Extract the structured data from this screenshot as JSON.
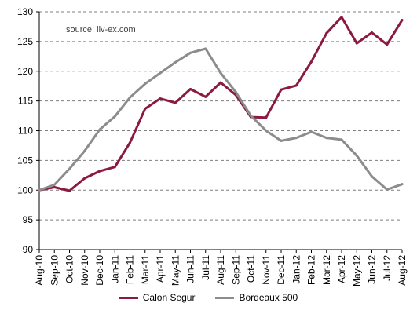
{
  "chart_data": {
    "type": "line",
    "title": "",
    "xlabel": "",
    "ylabel": "",
    "annotation": "source: liv-ex.com",
    "categories": [
      "Aug-10",
      "Sep-10",
      "Oct-10",
      "Nov-10",
      "Dec-10",
      "Jan-11",
      "Feb-11",
      "Mar-11",
      "Apr-11",
      "May-11",
      "Jun-11",
      "Jul-11",
      "Aug-11",
      "Sep-11",
      "Oct-11",
      "Nov-11",
      "Dec-11",
      "Jan-12",
      "Feb-12",
      "Mar-12",
      "Apr-12",
      "May-12",
      "Jun-12",
      "Jul-12",
      "Aug-12"
    ],
    "ylim": [
      90,
      130
    ],
    "yticks": [
      90,
      95,
      100,
      105,
      110,
      115,
      120,
      125,
      130
    ],
    "grid": "horizontal dashed",
    "legend_position": "bottom",
    "series": [
      {
        "name": "Calon Segur",
        "color": "#8b1a3e",
        "values": [
          100,
          100.5,
          99.9,
          102,
          103.2,
          103.9,
          108,
          113.7,
          115.4,
          114.7,
          117,
          115.7,
          118.1,
          116,
          112.3,
          112.2,
          116.9,
          117.6,
          121.6,
          126.4,
          129.1,
          124.7,
          126.5,
          124.5,
          128.6
        ]
      },
      {
        "name": "Bordeaux 500",
        "color": "#8c8c8c",
        "values": [
          100,
          100.9,
          103.6,
          106.6,
          110.2,
          112.4,
          115.6,
          117.9,
          119.7,
          121.5,
          123.1,
          123.8,
          119.7,
          116.5,
          112.5,
          110,
          108.3,
          108.8,
          109.8,
          108.8,
          108.5,
          105.8,
          102.3,
          100.1,
          101
        ]
      }
    ]
  }
}
